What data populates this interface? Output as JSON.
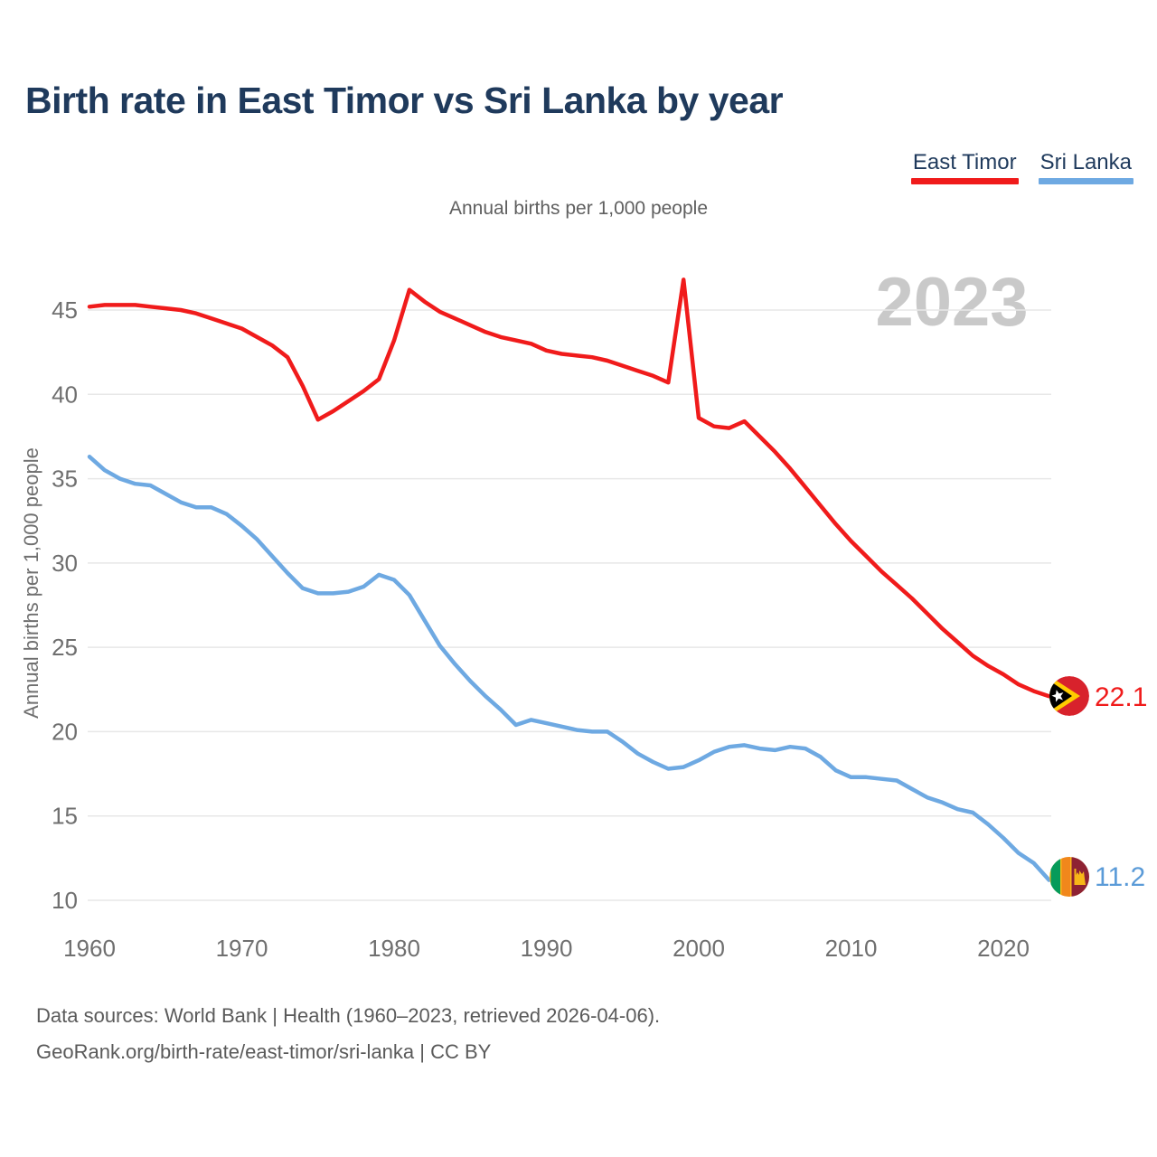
{
  "header": {
    "title": "Birth rate in East Timor vs Sri Lanka by year",
    "subtitle": "Annual births per 1,000 people"
  },
  "legend": [
    {
      "label": "East Timor",
      "color": "#f01b1b"
    },
    {
      "label": "Sri Lanka",
      "color": "#6ea9e2"
    }
  ],
  "watermark": "2023",
  "footer": {
    "line1": "Data sources: World Bank | Health (1960–2023, retrieved 2026-04-06).",
    "line2": "GeoRank.org/birth-rate/east-timor/sri-lanka | CC BY"
  },
  "chart_data": {
    "type": "line",
    "title": "Birth rate in East Timor vs Sri Lanka by year",
    "subtitle": "Annual births per 1,000 people",
    "ylabel": "Annual births per 1,000 people",
    "xlabel": "",
    "grid": "horizontal-only",
    "legend_position": "top-right",
    "ylim": [
      8.5,
      47.5
    ],
    "xlim": [
      1960,
      2023
    ],
    "y_ticks": [
      10,
      15,
      20,
      25,
      30,
      35,
      40,
      45
    ],
    "x_ticks": [
      1960,
      1970,
      1980,
      1990,
      2000,
      2010,
      2020
    ],
    "x": [
      1960,
      1961,
      1962,
      1963,
      1964,
      1965,
      1966,
      1967,
      1968,
      1969,
      1970,
      1971,
      1972,
      1973,
      1974,
      1975,
      1976,
      1977,
      1978,
      1979,
      1980,
      1981,
      1982,
      1983,
      1984,
      1985,
      1986,
      1987,
      1988,
      1989,
      1990,
      1991,
      1992,
      1993,
      1994,
      1995,
      1996,
      1997,
      1998,
      1999,
      2000,
      2001,
      2002,
      2003,
      2004,
      2005,
      2006,
      2007,
      2008,
      2009,
      2010,
      2011,
      2012,
      2013,
      2014,
      2015,
      2016,
      2017,
      2018,
      2019,
      2020,
      2021,
      2022,
      2023
    ],
    "series": [
      {
        "name": "East Timor",
        "color": "#f01b1b",
        "end_label": "22.1",
        "end_value": 22.1,
        "flag": "east-timor",
        "values": [
          45.2,
          45.3,
          45.3,
          45.3,
          45.2,
          45.1,
          45.0,
          44.8,
          44.5,
          44.2,
          43.9,
          43.4,
          42.9,
          42.2,
          40.5,
          38.5,
          39.0,
          39.6,
          40.2,
          40.9,
          43.2,
          46.2,
          45.5,
          44.9,
          44.5,
          44.1,
          43.7,
          43.4,
          43.2,
          43.0,
          42.6,
          42.4,
          42.3,
          42.2,
          42.0,
          41.7,
          41.4,
          41.1,
          40.7,
          46.8,
          38.6,
          38.1,
          38.0,
          38.4,
          37.5,
          36.6,
          35.6,
          34.5,
          33.4,
          32.3,
          31.3,
          30.4,
          29.5,
          28.7,
          27.9,
          27.0,
          26.1,
          25.3,
          24.5,
          23.9,
          23.4,
          22.8,
          22.4,
          22.1
        ]
      },
      {
        "name": "Sri Lanka",
        "color": "#6ea9e2",
        "end_label": "11.2",
        "end_value": 11.2,
        "flag": "sri-lanka",
        "values": [
          36.3,
          35.5,
          35.0,
          34.7,
          34.6,
          34.1,
          33.6,
          33.3,
          33.3,
          32.9,
          32.2,
          31.4,
          30.4,
          29.4,
          28.5,
          28.2,
          28.2,
          28.3,
          28.6,
          29.3,
          29.0,
          28.1,
          26.6,
          25.1,
          24.0,
          23.0,
          22.1,
          21.3,
          20.4,
          20.7,
          20.5,
          20.3,
          20.1,
          20.0,
          20.0,
          19.4,
          18.7,
          18.2,
          17.8,
          17.9,
          18.3,
          18.8,
          19.1,
          19.2,
          19.0,
          18.9,
          19.1,
          19.0,
          18.5,
          17.7,
          17.3,
          17.3,
          17.2,
          17.1,
          16.6,
          16.1,
          15.8,
          15.4,
          15.2,
          14.5,
          13.7,
          12.8,
          12.2,
          11.2
        ]
      }
    ]
  }
}
